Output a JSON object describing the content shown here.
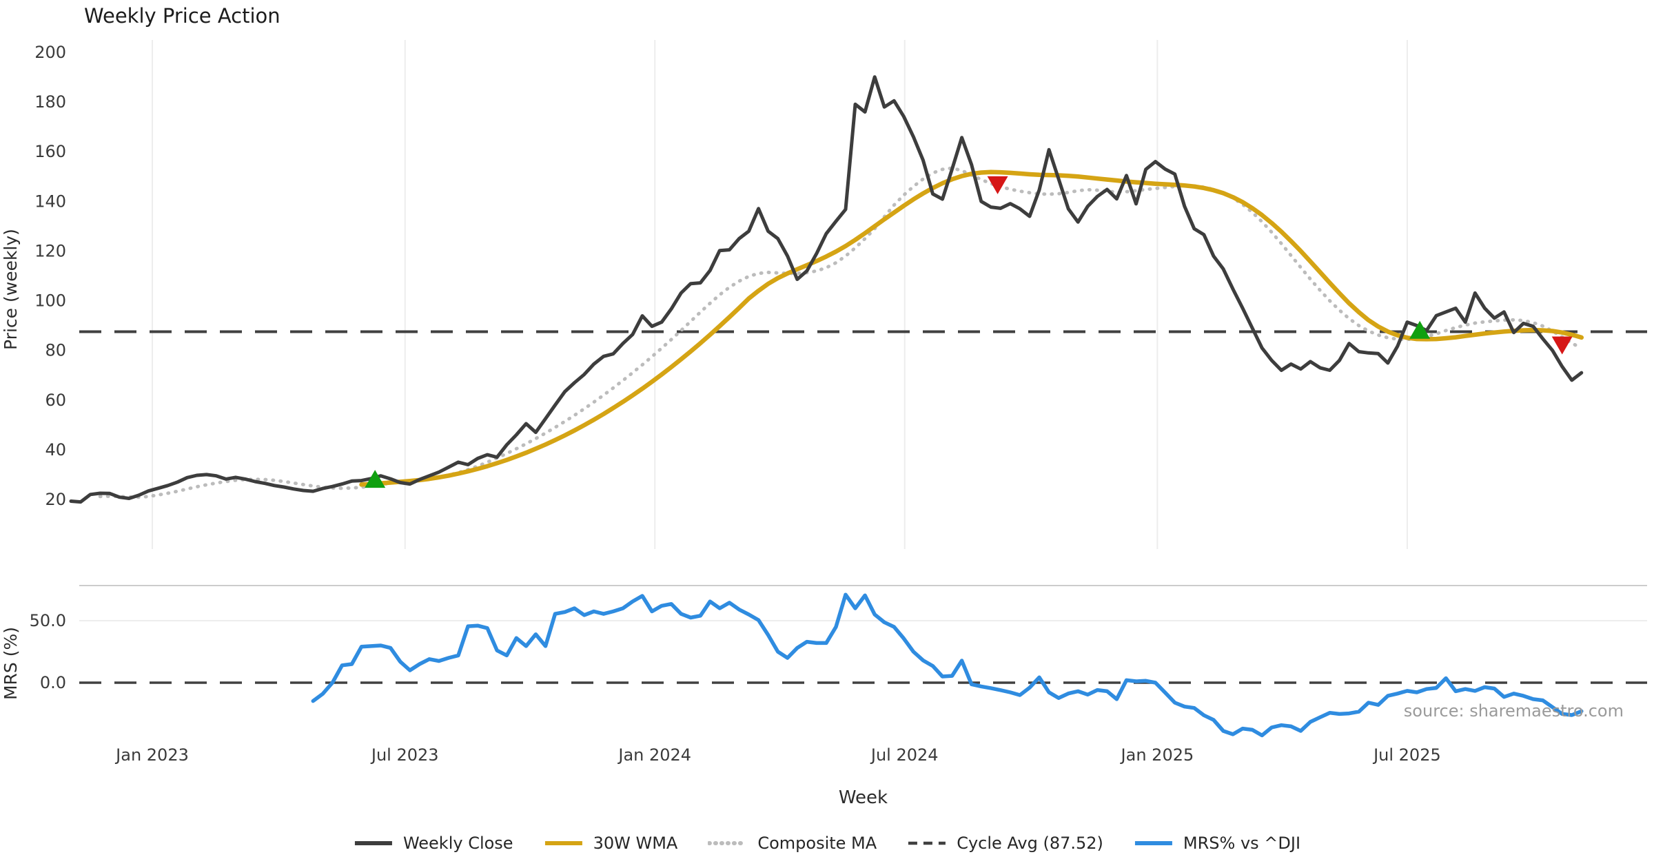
{
  "title": "Weekly Price Action",
  "source_note": "source: sharemaestro.com",
  "colors": {
    "weekly_close": "#3d3d3d",
    "wma": "#d5a414",
    "composite": "#bcbcbc",
    "cycle_avg": "#404040",
    "mrs": "#2f8ce0",
    "buy_marker": "#10a010",
    "sell_marker": "#d61717",
    "gridline": "#ededed",
    "separator": "#cccccc",
    "tick_text": "#3a3a3a"
  },
  "legend": {
    "items": [
      {
        "label": "Weekly Close",
        "style": "solid",
        "color": "#3d3d3d"
      },
      {
        "label": "30W WMA",
        "style": "solid",
        "color": "#d5a414"
      },
      {
        "label": "Composite MA",
        "style": "dotted",
        "color": "#bcbcbc"
      },
      {
        "label": "Cycle Avg (87.52)",
        "style": "dashed",
        "color": "#404040"
      },
      {
        "label": "MRS% vs ^DJI",
        "style": "solid",
        "color": "#2f8ce0"
      }
    ]
  },
  "chart_data": {
    "type": "line",
    "title": "Weekly Price Action",
    "xlabel": "Week",
    "x_tick_labels": [
      "Jan 2023",
      "Jul 2023",
      "Jan 2024",
      "Jul 2024",
      "Jan 2025",
      "Jul 2025"
    ],
    "x_tick_weeks": [
      8.4,
      34.5,
      60.3,
      86.1,
      112.2,
      138.0
    ],
    "total_weeks": 157,
    "panels": [
      {
        "name": "price",
        "ylabel": "Price (weekly)",
        "ylim": [
          0,
          205
        ],
        "yticks": [
          20,
          40,
          60,
          80,
          100,
          120,
          140,
          160,
          180,
          200
        ],
        "grid": "vertical-only",
        "cycle_avg": 87.52
      },
      {
        "name": "mrs",
        "ylabel": "MRS (%)",
        "ylim": [
          -46.7,
          78.3
        ],
        "yticks": [
          0,
          50
        ],
        "ytick_labels": [
          "0.0",
          "50.0"
        ],
        "grid": "horizontal-50-only",
        "zero_line": 0
      }
    ],
    "series": [
      {
        "name": "Weekly Close",
        "panel": "price",
        "style": "solid",
        "color": "#3d3d3d",
        "start_week": 0,
        "values": [
          19.3,
          19.0,
          22.0,
          22.5,
          22.4,
          20.9,
          20.4,
          21.7,
          23.4,
          24.5,
          25.6,
          27.0,
          28.8,
          29.7,
          30.0,
          29.5,
          28.2,
          28.9,
          28.2,
          27.2,
          26.5,
          25.6,
          25.0,
          24.2,
          23.6,
          23.3,
          24.4,
          25.2,
          26.2,
          27.4,
          27.6,
          28.4,
          29.5,
          28.3,
          26.8,
          26.2,
          28.0,
          29.5,
          31.0,
          33.0,
          35.0,
          34.0,
          36.5,
          38.0,
          37.0,
          42.0,
          46.0,
          50.5,
          47.0,
          52.5,
          58.0,
          63.4,
          67.0,
          70.3,
          74.5,
          77.6,
          78.6,
          82.8,
          86.4,
          93.9,
          89.7,
          91.4,
          96.7,
          103.1,
          106.9,
          107.2,
          112.2,
          120.2,
          120.5,
          125.0,
          128.0,
          137.1,
          128.0,
          125.0,
          118.0,
          108.6,
          112.0,
          119.0,
          127.0,
          132.0,
          136.8,
          179.1,
          176.0,
          190.1,
          178.0,
          180.5,
          174.2,
          166.0,
          156.6,
          143.0,
          140.9,
          153.0,
          165.7,
          154.8,
          140.0,
          137.7,
          137.2,
          139.1,
          137.0,
          134.0,
          144.6,
          160.8,
          149.0,
          137.0,
          131.7,
          138.0,
          142.0,
          144.8,
          141.0,
          150.4,
          139.0,
          152.9,
          156.0,
          153.0,
          151.0,
          138.0,
          129.0,
          126.6,
          118.0,
          112.8,
          104.7,
          97.0,
          89.0,
          81.0,
          76.0,
          72.0,
          74.5,
          72.5,
          75.5,
          73.0,
          72.0,
          76.0,
          82.8,
          79.5,
          79.0,
          78.7,
          74.9,
          81.7,
          91.4,
          90.0,
          88.0,
          94.0,
          95.5,
          97.0,
          91.4,
          103.1,
          97.0,
          93.0,
          95.5,
          87.2,
          90.9,
          89.7,
          84.7,
          80.0,
          73.5,
          68.0,
          71.0
        ]
      },
      {
        "name": "30W WMA",
        "panel": "price",
        "style": "solid",
        "color": "#d5a414",
        "start_week": 30,
        "values": [
          26.0,
          26.2,
          26.5,
          26.8,
          27.1,
          27.4,
          27.8,
          28.3,
          28.9,
          29.6,
          30.4,
          31.3,
          32.3,
          33.4,
          34.6,
          35.9,
          37.3,
          38.8,
          40.4,
          42.1,
          43.9,
          45.8,
          47.8,
          49.9,
          52.1,
          54.4,
          56.8,
          59.3,
          61.9,
          64.6,
          67.4,
          70.3,
          73.3,
          76.4,
          79.6,
          82.9,
          86.3,
          89.8,
          93.4,
          97.1,
          100.9,
          104.0,
          106.8,
          109.1,
          111.0,
          112.7,
          114.3,
          116.0,
          117.8,
          119.8,
          122.0,
          124.5,
          127.2,
          130.0,
          132.8,
          135.5,
          138.2,
          140.8,
          143.2,
          145.4,
          147.3,
          148.9,
          150.2,
          151.1,
          151.6,
          151.8,
          151.7,
          151.5,
          151.2,
          150.9,
          150.7,
          150.6,
          150.5,
          150.3,
          150.0,
          149.6,
          149.2,
          148.8,
          148.4,
          148.0,
          147.7,
          147.4,
          147.1,
          146.9,
          146.7,
          146.4,
          146.0,
          145.4,
          144.5,
          143.3,
          141.7,
          139.7,
          137.3,
          134.5,
          131.3,
          127.8,
          124.0,
          120.0,
          115.8,
          111.5,
          107.2,
          103.0,
          99.0,
          95.4,
          92.2,
          89.6,
          87.6,
          86.1,
          85.1,
          84.6,
          84.5,
          84.6,
          84.9,
          85.3,
          85.8,
          86.3,
          86.8,
          87.2,
          87.6,
          87.9,
          88.1,
          88.2,
          88.1,
          87.8,
          87.2,
          86.3,
          85.2
        ]
      },
      {
        "name": "Composite MA",
        "panel": "price",
        "style": "dotted",
        "color": "#bcbcbc",
        "start_week": 3,
        "values": [
          21.2,
          21.3,
          21.2,
          21.0,
          20.9,
          21.2,
          21.8,
          22.5,
          23.3,
          24.2,
          25.1,
          25.9,
          26.6,
          27.2,
          27.7,
          28.0,
          28.1,
          28.0,
          27.7,
          27.2,
          26.6,
          26.0,
          25.4,
          24.9,
          24.6,
          24.5,
          24.6,
          24.9,
          25.4,
          26.0,
          26.6,
          27.1,
          27.5,
          27.9,
          28.4,
          29.0,
          29.8,
          30.8,
          32.0,
          33.4,
          35.0,
          36.7,
          38.5,
          40.4,
          42.4,
          44.5,
          46.7,
          49.0,
          51.4,
          53.9,
          56.5,
          59.2,
          62.0,
          64.9,
          67.9,
          71.0,
          74.2,
          77.5,
          80.9,
          84.4,
          88.0,
          91.7,
          95.4,
          99.0,
          102.4,
          105.4,
          107.9,
          109.8,
          111.0,
          111.4,
          111.2,
          111.0,
          111.0,
          111.3,
          112.0,
          113.3,
          115.3,
          118.0,
          121.3,
          125.0,
          129.0,
          133.8,
          138.5,
          142.5,
          146.0,
          149.0,
          151.4,
          152.9,
          153.4,
          152.4,
          150.6,
          148.8,
          147.2,
          145.9,
          144.9,
          144.1,
          143.5,
          143.0,
          142.9,
          143.1,
          143.6,
          144.3,
          144.7,
          144.5,
          144.0,
          143.8,
          143.9,
          144.3,
          144.8,
          145.2,
          145.6,
          146.0,
          146.3,
          146.2,
          145.7,
          144.8,
          143.4,
          141.4,
          138.8,
          135.6,
          131.8,
          127.6,
          123.0,
          118.2,
          113.4,
          108.7,
          104.2,
          100.0,
          96.2,
          92.8,
          90.0,
          87.8,
          86.2,
          85.1,
          84.5,
          84.4,
          84.8,
          85.6,
          86.7,
          88.0,
          89.2,
          90.2,
          91.0,
          91.5,
          91.9,
          92.2,
          92.3,
          92.0,
          91.2,
          89.8,
          87.8,
          85.4,
          82.9,
          80.9
        ]
      },
      {
        "name": "Cycle Avg (87.52)",
        "panel": "price",
        "style": "dashed",
        "color": "#404040",
        "constant_value": 87.52
      },
      {
        "name": "MRS% vs ^DJI",
        "panel": "mrs",
        "style": "solid",
        "color": "#2f8ce0",
        "start_week": 25,
        "values": [
          -14.8,
          -9.0,
          0.0,
          14.0,
          15.0,
          29.0,
          29.5,
          30.0,
          28.0,
          17.0,
          10.0,
          15.0,
          19.0,
          17.5,
          20.0,
          22.0,
          45.5,
          46.0,
          44.0,
          26.0,
          22.0,
          36.0,
          29.5,
          39.0,
          29.5,
          55.5,
          57.0,
          60.0,
          54.5,
          57.5,
          55.5,
          57.5,
          60.0,
          65.5,
          70.0,
          57.5,
          62.0,
          63.5,
          55.5,
          52.5,
          54.0,
          65.5,
          60.0,
          64.5,
          59.0,
          55.0,
          50.5,
          38.5,
          25.0,
          20.0,
          28.0,
          33.0,
          32.0,
          32.0,
          45.0,
          71.0,
          60.0,
          70.4,
          55.0,
          48.7,
          45.0,
          35.7,
          25.0,
          18.0,
          13.5,
          5.0,
          5.5,
          17.8,
          -1.3,
          -3.0,
          -4.4,
          -6.0,
          -7.8,
          -10.0,
          -4.0,
          4.3,
          -7.8,
          -12.4,
          -8.7,
          -6.9,
          -9.6,
          -5.9,
          -6.9,
          -13.3,
          2.0,
          1.1,
          1.5,
          0.0,
          -8.0,
          -16.1,
          -19.3,
          -20.4,
          -26.3,
          -30.0,
          -38.9,
          -41.6,
          -37.0,
          -38.0,
          -42.5,
          -36.1,
          -34.3,
          -35.2,
          -38.9,
          -31.6,
          -27.9,
          -24.3,
          -25.2,
          -24.8,
          -23.4,
          -16.1,
          -17.9,
          -10.6,
          -8.8,
          -6.6,
          -7.8,
          -5.1,
          -4.2,
          3.6,
          -6.9,
          -5.1,
          -6.6,
          -3.6,
          -4.7,
          -11.5,
          -8.8,
          -10.6,
          -13.3,
          -14.2,
          -19.7,
          -25.2,
          -26.1,
          -23.0
        ]
      }
    ],
    "markers": [
      {
        "type": "buy",
        "shape": "triangle-up",
        "week": 31.4,
        "value": 28.3,
        "color": "#10a010"
      },
      {
        "type": "sell",
        "shape": "triangle-down",
        "week": 95.7,
        "value": 146.5,
        "color": "#d61717"
      },
      {
        "type": "buy",
        "shape": "triangle-up",
        "week": 139.3,
        "value": 88.3,
        "color": "#10a010"
      },
      {
        "type": "sell",
        "shape": "triangle-down",
        "week": 154.0,
        "value": 82.0,
        "color": "#d61717"
      }
    ]
  }
}
